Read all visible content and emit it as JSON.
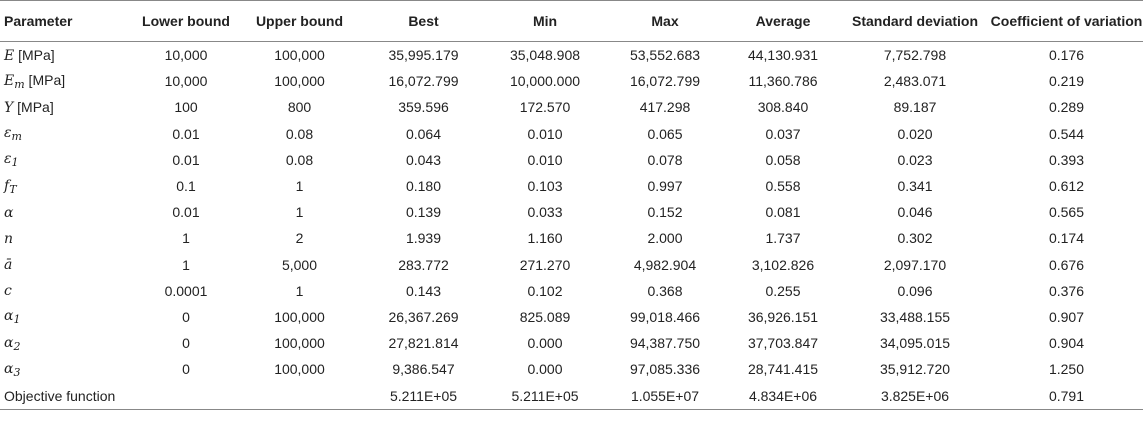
{
  "table": {
    "headers": [
      "Parameter",
      "Lower bound",
      "Upper bound",
      "Best",
      "Min",
      "Max",
      "Average",
      "Standard deviation",
      "Coefficient of variation"
    ],
    "rows": [
      {
        "sym": "E",
        "sub": "",
        "unit": " [MPa]",
        "plain": "",
        "values": [
          "10,000",
          "100,000",
          "35,995.179",
          "35,048.908",
          "53,552.683",
          "44,130.931",
          "7,752.798",
          "0.176"
        ]
      },
      {
        "sym": "E",
        "sub": "m",
        "unit": " [MPa]",
        "plain": "",
        "values": [
          "10,000",
          "100,000",
          "16,072.799",
          "10,000.000",
          "16,072.799",
          "11,360.786",
          "2,483.071",
          "0.219"
        ]
      },
      {
        "sym": "Y",
        "sub": "",
        "unit": " [MPa]",
        "plain": "",
        "values": [
          "100",
          "800",
          "359.596",
          "172.570",
          "417.298",
          "308.840",
          "89.187",
          "0.289"
        ]
      },
      {
        "sym": "ε",
        "sub": "m",
        "unit": "",
        "plain": "",
        "values": [
          "0.01",
          "0.08",
          "0.064",
          "0.010",
          "0.065",
          "0.037",
          "0.020",
          "0.544"
        ]
      },
      {
        "sym": "ε",
        "sub": "1",
        "unit": "",
        "plain": "",
        "values": [
          "0.01",
          "0.08",
          "0.043",
          "0.010",
          "0.078",
          "0.058",
          "0.023",
          "0.393"
        ]
      },
      {
        "sym": "f",
        "sub": "T",
        "unit": "",
        "plain": "",
        "values": [
          "0.1",
          "1",
          "0.180",
          "0.103",
          "0.997",
          "0.558",
          "0.341",
          "0.612"
        ]
      },
      {
        "sym": "α",
        "sub": "",
        "unit": "",
        "plain": "",
        "values": [
          "0.01",
          "1",
          "0.139",
          "0.033",
          "0.152",
          "0.081",
          "0.046",
          "0.565"
        ]
      },
      {
        "sym": "n",
        "sub": "",
        "unit": "",
        "plain": "",
        "values": [
          "1",
          "2",
          "1.939",
          "1.160",
          "2.000",
          "1.737",
          "0.302",
          "0.174"
        ]
      },
      {
        "sym": "ā",
        "sub": "",
        "unit": "",
        "plain": "",
        "values": [
          "1",
          "5,000",
          "283.772",
          "271.270",
          "4,982.904",
          "3,102.826",
          "2,097.170",
          "0.676"
        ]
      },
      {
        "sym": "c",
        "sub": "",
        "unit": "",
        "plain": "",
        "values": [
          "0.0001",
          "1",
          "0.143",
          "0.102",
          "0.368",
          "0.255",
          "0.096",
          "0.376"
        ]
      },
      {
        "sym": "α",
        "sub": "1",
        "unit": "",
        "plain": "",
        "values": [
          "0",
          "100,000",
          "26,367.269",
          "825.089",
          "99,018.466",
          "36,926.151",
          "33,488.155",
          "0.907"
        ]
      },
      {
        "sym": "α",
        "sub": "2",
        "unit": "",
        "plain": "",
        "values": [
          "0",
          "100,000",
          "27,821.814",
          "0.000",
          "94,387.750",
          "37,703.847",
          "34,095.015",
          "0.904"
        ]
      },
      {
        "sym": "α",
        "sub": "3",
        "unit": "",
        "plain": "",
        "values": [
          "0",
          "100,000",
          "9,386.547",
          "0.000",
          "97,085.336",
          "28,741.415",
          "35,912.720",
          "1.250"
        ]
      },
      {
        "sym": "",
        "sub": "",
        "unit": "",
        "plain": "Objective function",
        "values": [
          "",
          "",
          "5.211E+05",
          "5.211E+05",
          "1.055E+07",
          "4.834E+06",
          "3.825E+06",
          "0.791"
        ]
      }
    ]
  }
}
